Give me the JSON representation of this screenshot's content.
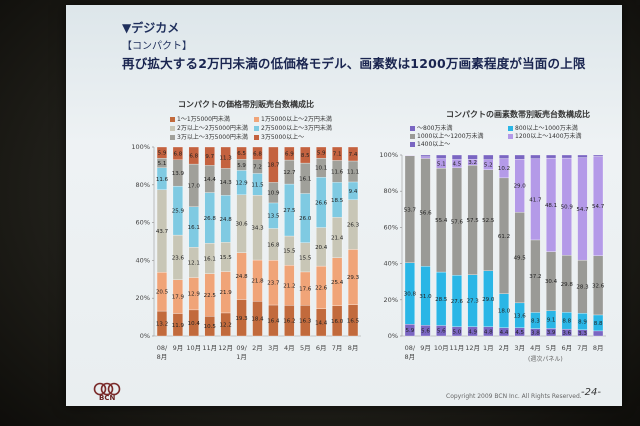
{
  "slide": {
    "section": "▼デジカメ",
    "subsection": "【コンパクト】",
    "headline": "再び拡大する2万円未満の低価格モデル、画素数は1200万画素程度が当面の上限",
    "footer_copyright": "Copyright 2009 BCN Inc. All Rights Reserved.",
    "page_number": "-24-",
    "unit_note": "(週次パネル)",
    "logo_text": "BCN"
  },
  "colors": {
    "c1": "#c26a3c",
    "c2": "#f0a478",
    "c3": "#c8c6b6",
    "c4": "#7fcae2",
    "c5": "#a0a09a",
    "c6": "#c4623f",
    "r1": "#7a66c2",
    "r2": "#2ab6e6",
    "r3": "#9a9a96",
    "r4": "#b49ae8"
  },
  "chart_data": [
    {
      "type": "bar",
      "title": "コンパクトの価格帯別販売台数構成比",
      "legend": [
        {
          "name": "1～1万5000円未満",
          "color": "#c26a3c"
        },
        {
          "name": "1万5000以上～2万円未満",
          "color": "#f0a478"
        },
        {
          "name": "2万以上～2万5000円未満",
          "color": "#c8c6b6"
        },
        {
          "name": "2万5000以上～3万円未満",
          "color": "#7fcae2"
        },
        {
          "name": "3万以上～3万5000円未満",
          "color": "#a0a09a"
        },
        {
          "name": "3万5000以上～",
          "color": "#c4623f"
        }
      ],
      "yticks": [
        "100%",
        "80%",
        "60%",
        "40%",
        "20%",
        "0%"
      ],
      "categories": [
        "08/8月",
        "9月",
        "10月",
        "11月",
        "12月",
        "09/1月",
        "2月",
        "3月",
        "4月",
        "5月",
        "6月",
        "7月",
        "8月"
      ],
      "x_labels": [
        {
          "line1": "08/",
          "line2": "8月"
        },
        {
          "line1": "9月",
          "line2": ""
        },
        {
          "line1": "10月",
          "line2": ""
        },
        {
          "line1": "11月",
          "line2": ""
        },
        {
          "line1": "12月",
          "line2": ""
        },
        {
          "line1": "09/",
          "line2": "1月"
        },
        {
          "line1": "2月",
          "line2": ""
        },
        {
          "line1": "3月",
          "line2": ""
        },
        {
          "line1": "4月",
          "line2": ""
        },
        {
          "line1": "5月",
          "line2": ""
        },
        {
          "line1": "6月",
          "line2": ""
        },
        {
          "line1": "7月",
          "line2": ""
        },
        {
          "line1": "8月",
          "line2": ""
        }
      ],
      "series": [
        {
          "name": "1～1万5000円未満",
          "values": [
            13.2,
            11.9,
            10.4,
            10.5,
            12.2,
            19.3,
            18.4,
            16.4,
            16.2,
            16.3,
            14.4,
            16.0,
            16.5
          ]
        },
        {
          "name": "1万5000以上～2万円未満",
          "values": [
            20.5,
            17.9,
            12.9,
            22.5,
            21.9,
            24.8,
            21.8,
            23.7,
            21.2,
            17.6,
            22.6,
            25.4,
            29.3
          ]
        },
        {
          "name": "2万以上～2万5000円未満",
          "values": [
            43.7,
            23.6,
            12.1,
            16.1,
            15.5,
            30.6,
            34.3,
            16.8,
            15.5,
            15.5,
            20.4,
            21.4,
            26.3
          ]
        },
        {
          "name": "2万5000以上～3万円未満",
          "values": [
            11.6,
            25.9,
            16.1,
            26.8,
            24.8,
            12.9,
            11.5,
            13.5,
            27.5,
            26.0,
            26.6,
            18.5,
            9.4
          ]
        },
        {
          "name": "3万以上～3万5000円未満",
          "values": [
            5.1,
            13.9,
            17.0,
            14.4,
            14.3,
            5.9,
            7.2,
            10.9,
            12.7,
            16.1,
            10.1,
            11.6,
            11.1
          ]
        },
        {
          "name": "3万5000以上～",
          "values": [
            5.9,
            6.8,
            6.8,
            9.7,
            11.3,
            6.5,
            6.8,
            18.7,
            6.9,
            8.5,
            5.9,
            7.1,
            7.4
          ]
        }
      ]
    },
    {
      "type": "bar",
      "title": "コンパクトの画素数帯別販売台数構成比",
      "legend": [
        {
          "name": "～800万未満",
          "color": "#7a66c2"
        },
        {
          "name": "800以上～1000万未満",
          "color": "#2ab6e6"
        },
        {
          "name": "1000以上～1200万未満",
          "color": "#9a9a96"
        },
        {
          "name": "1200以上～1400万未満",
          "color": "#b49ae8"
        },
        {
          "name": "1400以上～",
          "color": "#7a66c2"
        }
      ],
      "yticks": [
        "100%",
        "80%",
        "60%",
        "40%",
        "20%",
        "0%"
      ],
      "categories": [
        "08/8月",
        "9月",
        "10月",
        "11月",
        "12月",
        "09/1月",
        "2月",
        "3月",
        "4月",
        "5月",
        "6月",
        "7月",
        "8月"
      ],
      "x_labels": [
        {
          "line1": "08/",
          "line2": "8月"
        },
        {
          "line1": "9月",
          "line2": ""
        },
        {
          "line1": "10月",
          "line2": ""
        },
        {
          "line1": "11月",
          "line2": ""
        },
        {
          "line1": "12月",
          "line2": ""
        },
        {
          "line1": "1月",
          "line2": ""
        },
        {
          "line1": "2月",
          "line2": ""
        },
        {
          "line1": "3月",
          "line2": ""
        },
        {
          "line1": "4月",
          "line2": ""
        },
        {
          "line1": "5月",
          "line2": ""
        },
        {
          "line1": "6月",
          "line2": ""
        },
        {
          "line1": "7月",
          "line2": ""
        },
        {
          "line1": "8月",
          "line2": ""
        }
      ],
      "series": [
        {
          "name": "～800万未満",
          "values": [
            5.9,
            5.6,
            5.6,
            5.0,
            4.9,
            4.8,
            4.4,
            4.5,
            3.8,
            3.9,
            3.6,
            3.3,
            2.8
          ]
        },
        {
          "name": "800以上～1000万未満",
          "values": [
            30.8,
            31.0,
            28.5,
            27.6,
            27.3,
            29.0,
            18.0,
            13.6,
            8.3,
            9.1,
            8.8,
            8.9,
            8.8
          ]
        },
        {
          "name": "1000以上～1200万未満",
          "values": [
            53.7,
            56.6,
            55.4,
            57.6,
            57.5,
            52.5,
            61.2,
            49.5,
            37.2,
            30.4,
            29.8,
            28.3,
            32.6
          ]
        },
        {
          "name": "1200以上～1400万未満",
          "values": [
            0.2,
            0.9,
            5.1,
            4.5,
            3.2,
            5.2,
            10.2,
            29.0,
            41.7,
            48.1,
            50.9,
            54.7,
            54.7
          ]
        },
        {
          "name": "1400以上～",
          "values": [
            0.2,
            0.9,
            1.9,
            2.4,
            2.2,
            2.4,
            1.9,
            2.3,
            1.9,
            1.6,
            1.6,
            1.4,
            0.8
          ]
        }
      ]
    }
  ]
}
